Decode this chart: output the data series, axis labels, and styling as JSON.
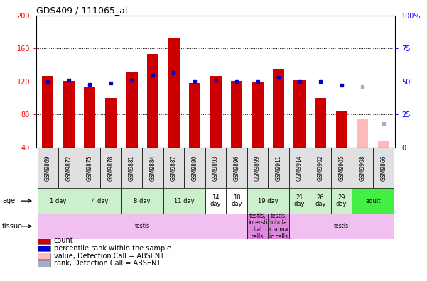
{
  "title": "GDS409 / 111065_at",
  "samples": [
    "GSM9869",
    "GSM9872",
    "GSM9875",
    "GSM9878",
    "GSM9881",
    "GSM9884",
    "GSM9887",
    "GSM9890",
    "GSM9893",
    "GSM9896",
    "GSM9899",
    "GSM9911",
    "GSM9914",
    "GSM9902",
    "GSM9905",
    "GSM9908",
    "GSM9866"
  ],
  "counts": [
    127,
    121,
    113,
    100,
    132,
    153,
    172,
    118,
    127,
    121,
    119,
    135,
    122,
    100,
    84,
    75,
    48
  ],
  "percentile_ranks": [
    50,
    51,
    48,
    49,
    51,
    55,
    57,
    50,
    51,
    50,
    50,
    53,
    50,
    50,
    47,
    46,
    18
  ],
  "absent_flags": [
    false,
    false,
    false,
    false,
    false,
    false,
    false,
    false,
    false,
    false,
    false,
    false,
    false,
    false,
    false,
    true,
    true
  ],
  "bar_color_normal": "#cc0000",
  "bar_color_absent": "#ffbbbb",
  "dot_color_normal": "#0000cc",
  "dot_color_absent": "#aaaacc",
  "ylim_left": [
    40,
    200
  ],
  "ylim_right": [
    0,
    100
  ],
  "yticks_left": [
    40,
    80,
    120,
    160,
    200
  ],
  "yticks_right": [
    0,
    25,
    50,
    75,
    100
  ],
  "age_groups": [
    {
      "label": "1 day",
      "start": 0,
      "end": 1,
      "color": "#ccf0cc"
    },
    {
      "label": "4 day",
      "start": 2,
      "end": 3,
      "color": "#ccf0cc"
    },
    {
      "label": "8 day",
      "start": 4,
      "end": 5,
      "color": "#ccf0cc"
    },
    {
      "label": "11 day",
      "start": 6,
      "end": 7,
      "color": "#ccf0cc"
    },
    {
      "label": "14\nday",
      "start": 8,
      "end": 8,
      "color": "#ffffff"
    },
    {
      "label": "18\nday",
      "start": 9,
      "end": 9,
      "color": "#ffffff"
    },
    {
      "label": "19 day",
      "start": 10,
      "end": 11,
      "color": "#ccf0cc"
    },
    {
      "label": "21\nday",
      "start": 12,
      "end": 12,
      "color": "#ccf0cc"
    },
    {
      "label": "26\nday",
      "start": 13,
      "end": 13,
      "color": "#ccf0cc"
    },
    {
      "label": "29\nday",
      "start": 14,
      "end": 14,
      "color": "#ccf0cc"
    },
    {
      "label": "adult",
      "start": 15,
      "end": 16,
      "color": "#44ee44"
    }
  ],
  "tissue_groups": [
    {
      "label": "testis",
      "start": 0,
      "end": 9,
      "color": "#f0c0f0"
    },
    {
      "label": "testis,\nintersti\ntial\ncells",
      "start": 10,
      "end": 10,
      "color": "#dd88dd"
    },
    {
      "label": "testis,\ntubula\nr soma\nic cells",
      "start": 11,
      "end": 11,
      "color": "#dd88dd"
    },
    {
      "label": "testis",
      "start": 12,
      "end": 16,
      "color": "#f0c0f0"
    }
  ],
  "legend_items": [
    {
      "label": "count",
      "color": "#cc0000"
    },
    {
      "label": "percentile rank within the sample",
      "color": "#0000cc"
    },
    {
      "label": "value, Detection Call = ABSENT",
      "color": "#ffbbbb"
    },
    {
      "label": "rank, Detection Call = ABSENT",
      "color": "#aaaacc"
    }
  ],
  "bg_color": "#ffffff",
  "bar_width": 0.55
}
